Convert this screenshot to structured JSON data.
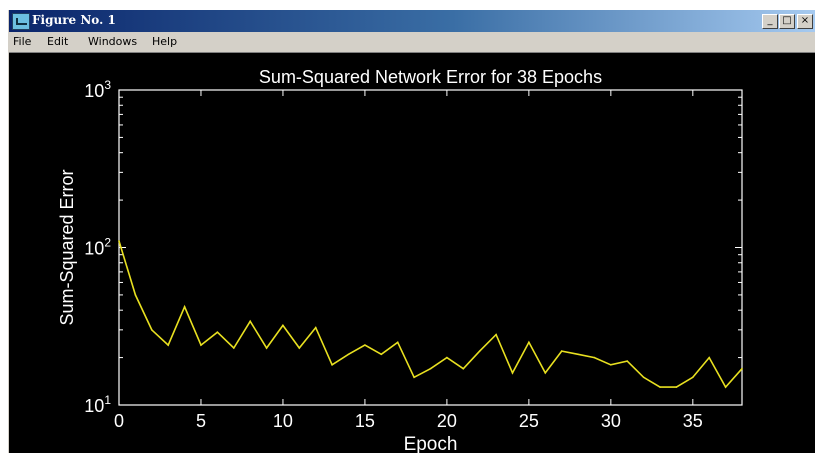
{
  "window": {
    "title": "Figure No. 1",
    "min_label": "_",
    "max_label": "□",
    "close_label": "×"
  },
  "menu": {
    "items": [
      "File",
      "Edit",
      "Windows",
      "Help"
    ]
  },
  "colors": {
    "figure_background": "#000000",
    "axes_color": "#ffffff",
    "line_color": "#e8e020",
    "titlebar_start": "#0a246a",
    "titlebar_end": "#a6caf0",
    "chrome": "#d4d0c8"
  },
  "chart_data": {
    "type": "line",
    "title": "Sum-Squared Network Error for 38 Epochs",
    "xlabel": "Epoch",
    "ylabel": "Sum-Squared Error",
    "xlim": [
      0,
      38
    ],
    "ylim": [
      10,
      1000
    ],
    "yscale": "log",
    "x_ticks": [
      0,
      5,
      10,
      15,
      20,
      25,
      30,
      35
    ],
    "y_ticks": [
      {
        "value": 10,
        "base": "10",
        "exp": "1"
      },
      {
        "value": 100,
        "base": "10",
        "exp": "2"
      },
      {
        "value": 1000,
        "base": "10",
        "exp": "3"
      }
    ],
    "grid": false,
    "series": [
      {
        "x": [
          0,
          1,
          2,
          3,
          4,
          5,
          6,
          7,
          8,
          9,
          10,
          11,
          12,
          13,
          14,
          15,
          16,
          17,
          18,
          19,
          20,
          21,
          22,
          23,
          24,
          25,
          26,
          27,
          28,
          29,
          30,
          31,
          32,
          33,
          34,
          35,
          36,
          37,
          38
        ],
        "values": [
          110,
          50,
          30,
          24,
          42,
          24,
          29,
          23,
          34,
          23,
          32,
          23,
          31,
          18,
          21,
          24,
          21,
          25,
          15,
          17,
          20,
          17,
          22,
          28,
          16,
          25,
          16,
          22,
          21,
          20,
          18,
          19,
          15,
          13,
          13,
          15,
          20,
          13,
          17
        ]
      }
    ]
  }
}
